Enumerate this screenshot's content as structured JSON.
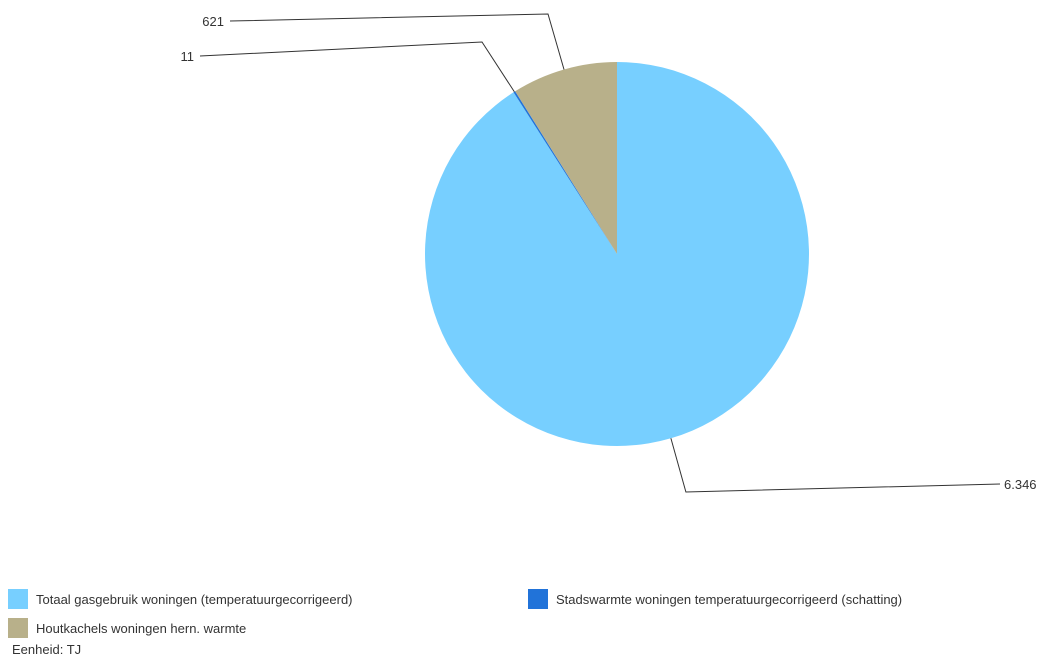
{
  "chart_data": {
    "type": "pie",
    "unit": "TJ",
    "slices": [
      {
        "name": "Totaal gasgebruik woningen (temperatuurgecorrigeerd)",
        "value": 6346,
        "label": "6.346",
        "color": "#77cfff"
      },
      {
        "name": "Stadswarmte woningen temperatuurgecorrigeerd (schatting)",
        "value": 11,
        "label": "11",
        "color": "#2173d9"
      },
      {
        "name": "Houtkachels woningen hern. warmte",
        "value": 621,
        "label": "621",
        "color": "#b8b08a"
      }
    ],
    "legend_position": "bottom"
  },
  "footer": {
    "unit_note": "Eenheid: TJ"
  }
}
